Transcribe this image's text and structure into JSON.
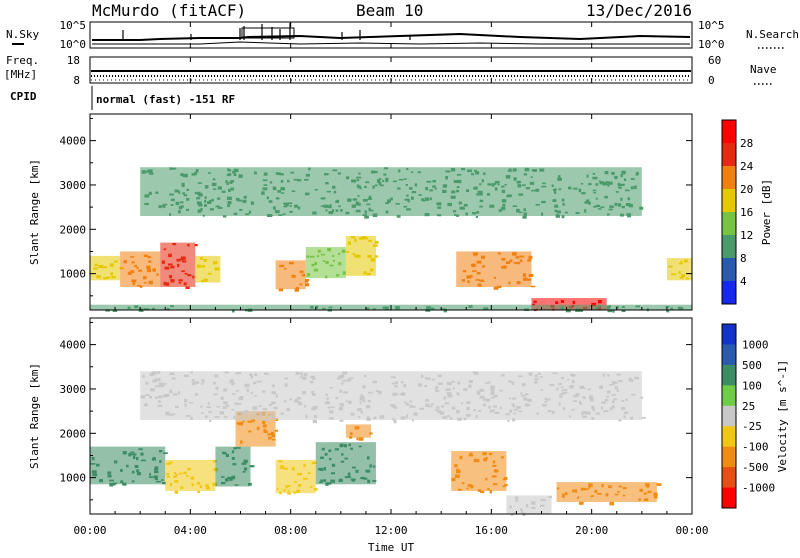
{
  "header": {
    "station": "McMurdo (fitACF)",
    "beam": "Beam 10",
    "date": "13/Dec/2016"
  },
  "strips": {
    "nsky_label": "N.Sky",
    "nsearch_label": "N.Search",
    "noise_ticks_left": [
      "10^5",
      "10^0"
    ],
    "noise_ticks_right": [
      "10^5",
      "10^0"
    ],
    "freq_label_top": "Freq.",
    "freq_label_bottom": "[MHz]",
    "freq_ticks": [
      "18",
      "8"
    ],
    "nave_label": "Nave",
    "nave_ticks": [
      "60",
      "0"
    ],
    "cpid_label": "CPID",
    "cpid_text": "normal (fast) -151 RF"
  },
  "axes": {
    "ylabel": "Slant Range [km]",
    "xlabel": "Time UT",
    "y_ticks": [
      "1000",
      "2000",
      "3000",
      "4000"
    ],
    "x_ticks": [
      "00:00",
      "04:00",
      "08:00",
      "12:00",
      "16:00",
      "20:00",
      "00:00"
    ]
  },
  "chart_data": [
    {
      "type": "heatmap",
      "title": "",
      "xlabel": "Time UT",
      "ylabel": "Slant Range [km]",
      "xlim_hours": [
        0,
        24
      ],
      "ylim_km": [
        180,
        4600
      ],
      "colorbar": {
        "label": "Power [dB]",
        "ticks": [
          "4",
          "8",
          "12",
          "16",
          "20",
          "24",
          "28"
        ],
        "tick_values": [
          4,
          8,
          12,
          16,
          20,
          24,
          28
        ],
        "range": [
          0,
          30
        ],
        "colors": [
          "#1428f0",
          "#2a5ab0",
          "#4a9a6a",
          "#76c442",
          "#e6c800",
          "#f08010",
          "#e62a10",
          "#ff0000"
        ]
      },
      "regions": [
        {
          "t": [
            0.0,
            1.2
          ],
          "r": [
            850,
            1400
          ],
          "value": 16
        },
        {
          "t": [
            1.2,
            2.8
          ],
          "r": [
            700,
            1500
          ],
          "value": 20
        },
        {
          "t": [
            2.8,
            4.2
          ],
          "r": [
            700,
            1700
          ],
          "value": 24
        },
        {
          "t": [
            4.2,
            5.2
          ],
          "r": [
            800,
            1400
          ],
          "value": 16
        },
        {
          "t": [
            7.4,
            8.6
          ],
          "r": [
            650,
            1300
          ],
          "value": 20
        },
        {
          "t": [
            8.6,
            10.2
          ],
          "r": [
            900,
            1600
          ],
          "value": 12
        },
        {
          "t": [
            10.2,
            11.4
          ],
          "r": [
            950,
            1850
          ],
          "value": 16
        },
        {
          "t": [
            14.6,
            17.6
          ],
          "r": [
            700,
            1500
          ],
          "value": 20
        },
        {
          "t": [
            17.6,
            20.6
          ],
          "r": [
            180,
            450
          ],
          "value": 28
        },
        {
          "t": [
            23.0,
            24.0
          ],
          "r": [
            850,
            1350
          ],
          "value": 16
        },
        {
          "t": [
            2.0,
            22.0
          ],
          "r": [
            2300,
            3400
          ],
          "value": 8
        },
        {
          "t": [
            0.0,
            24.0
          ],
          "r": [
            180,
            300
          ],
          "value": 8
        }
      ]
    },
    {
      "type": "heatmap",
      "title": "",
      "xlabel": "Time UT",
      "ylabel": "Slant Range [km]",
      "xlim_hours": [
        0,
        24
      ],
      "ylim_km": [
        180,
        4600
      ],
      "colorbar": {
        "label": "Velocity [m s^-1]",
        "ticks": [
          "1000",
          "500",
          "100",
          "25",
          "-25",
          "-100",
          "-500",
          "-1000"
        ],
        "tick_values": [
          1000,
          500,
          100,
          25,
          -25,
          -100,
          -500,
          -1000
        ],
        "colors": [
          "#1432c8",
          "#2a5ab0",
          "#3c8c64",
          "#6ecc46",
          "#c8c8c8",
          "#f0c814",
          "#f08c14",
          "#e65014",
          "#ff0000"
        ]
      },
      "regions": [
        {
          "t": [
            0.0,
            3.0
          ],
          "r": [
            850,
            1700
          ],
          "value": 100
        },
        {
          "t": [
            3.0,
            5.0
          ],
          "r": [
            700,
            1400
          ],
          "value": -100
        },
        {
          "t": [
            5.0,
            6.4
          ],
          "r": [
            800,
            1700
          ],
          "value": 100
        },
        {
          "t": [
            7.4,
            9.0
          ],
          "r": [
            650,
            1400
          ],
          "value": -100
        },
        {
          "t": [
            9.0,
            11.4
          ],
          "r": [
            850,
            1800
          ],
          "value": 100
        },
        {
          "t": [
            14.4,
            16.6
          ],
          "r": [
            700,
            1600
          ],
          "value": -500
        },
        {
          "t": [
            18.6,
            22.6
          ],
          "r": [
            450,
            900
          ],
          "value": -500
        },
        {
          "t": [
            5.8,
            7.4
          ],
          "r": [
            1700,
            2500
          ],
          "value": -500
        },
        {
          "t": [
            10.2,
            11.2
          ],
          "r": [
            1900,
            2200
          ],
          "value": -500
        },
        {
          "t": [
            16.6,
            18.4
          ],
          "r": [
            180,
            600
          ],
          "value": -25
        },
        {
          "t": [
            2.0,
            22.0
          ],
          "r": [
            2300,
            3400
          ],
          "value": -25
        }
      ]
    }
  ]
}
